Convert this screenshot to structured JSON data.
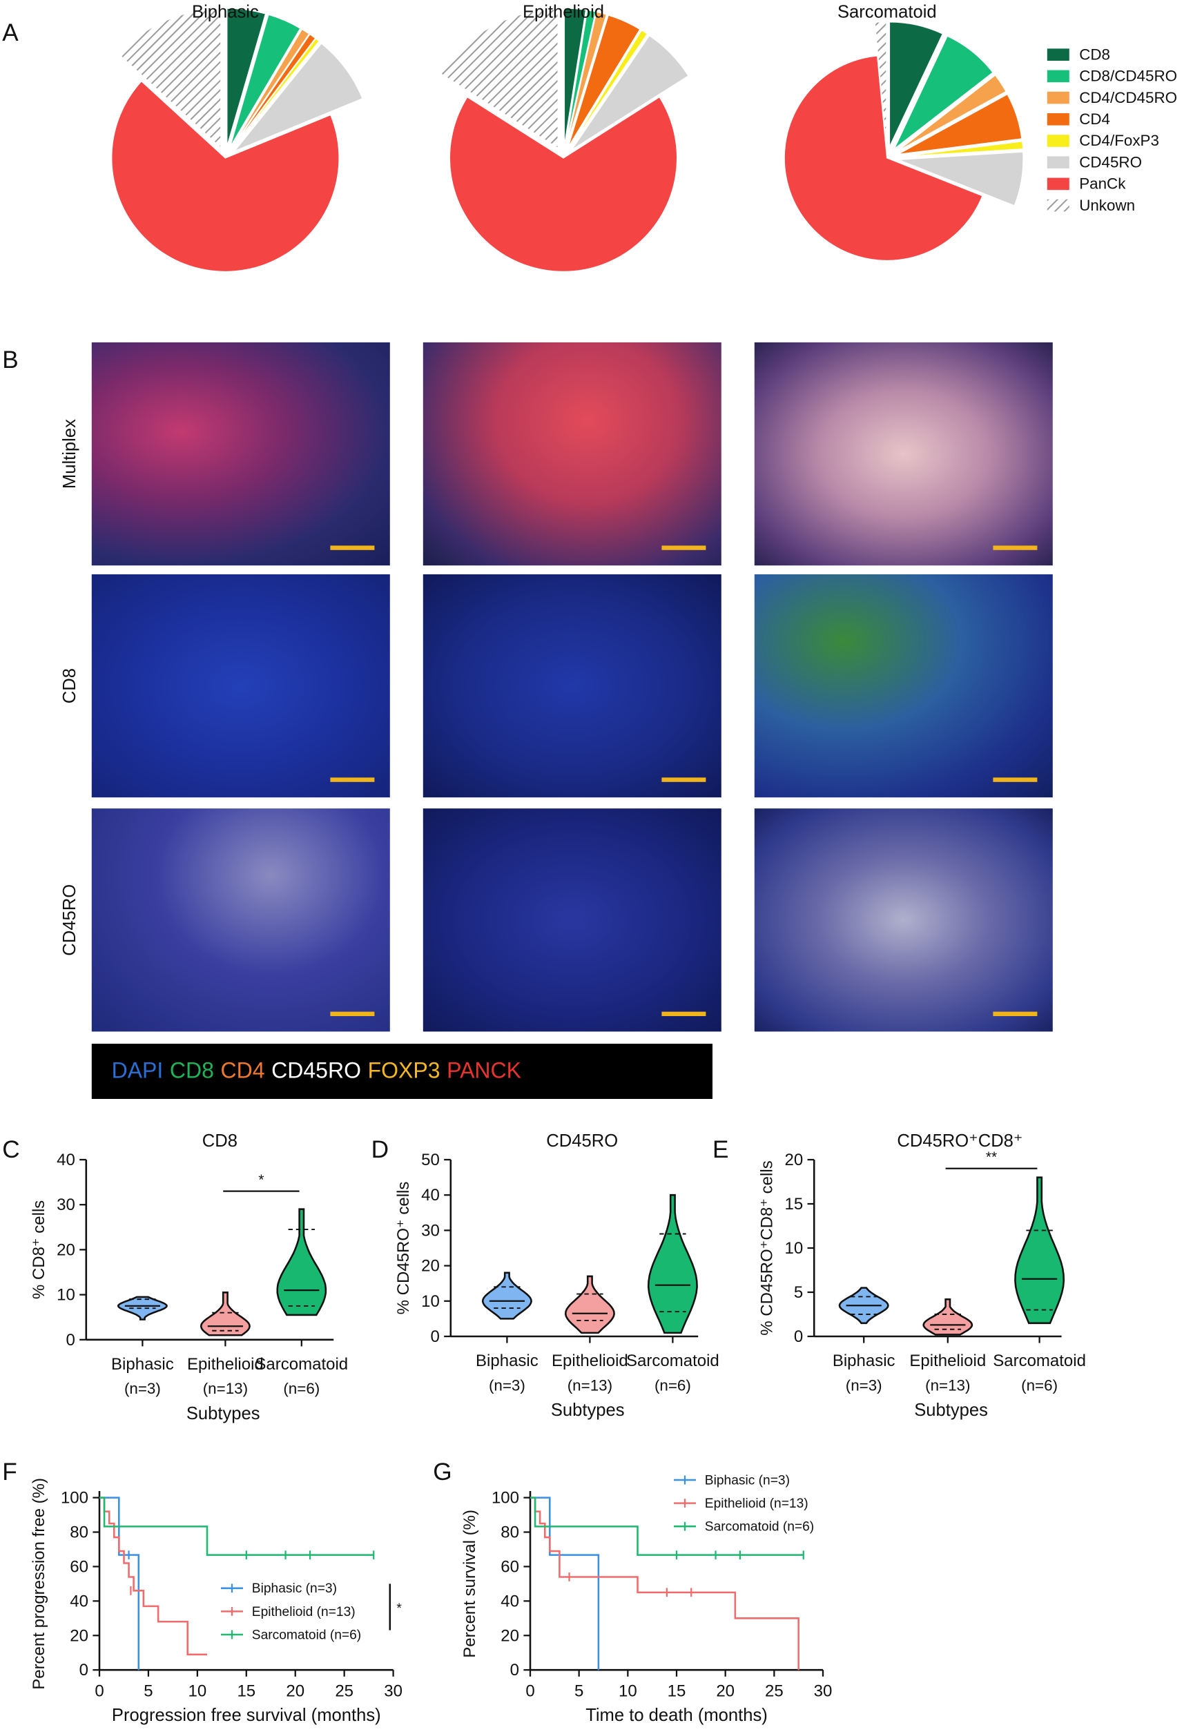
{
  "panel_letters": {
    "A": "A",
    "B": "B",
    "C": "C",
    "D": "D",
    "E": "E",
    "F": "F",
    "G": "G"
  },
  "microscopy": {
    "columns": [
      "Biphasic",
      "Epithelioid",
      "Sarcomatoid"
    ],
    "rows": [
      "Multiplex",
      "CD8",
      "CD45RO"
    ],
    "stain_legend": [
      {
        "label": "DAPI",
        "color": "#2a6fd6"
      },
      {
        "label": "CD8",
        "color": "#1fb35a"
      },
      {
        "label": "CD4",
        "color": "#f07a2a"
      },
      {
        "label": "CD45RO",
        "color": "#ffffff"
      },
      {
        "label": "FOXP3",
        "color": "#f5b820"
      },
      {
        "label": "PANCK",
        "color": "#e8332f"
      }
    ],
    "scale_bar_color": "#f2b41c"
  },
  "chart_data": [
    {
      "id": "A",
      "type": "pie",
      "legend_position": "right",
      "categories": [
        "CD8",
        "CD8/CD45RO",
        "CD4/CD45RO",
        "CD4",
        "CD4/FoxP3",
        "CD45RO",
        "PanCk",
        "Unkown"
      ],
      "colors": [
        "#0c6b45",
        "#17c07a",
        "#f6a24c",
        "#f36b10",
        "#f7ee1c",
        "#d4d4d4",
        "#f44444",
        "#hatch"
      ],
      "pies": [
        {
          "title": "Biphasic",
          "values": [
            4.5,
            4.0,
            1.0,
            0.8,
            0.5,
            8.0,
            68.0,
            13.2
          ]
        },
        {
          "title": "Epithelioid",
          "values": [
            2.5,
            1.0,
            1.2,
            4.0,
            0.8,
            6.5,
            68.0,
            16.0
          ]
        },
        {
          "title": "Sarcomatoid",
          "values": [
            7.0,
            7.5,
            2.5,
            6.0,
            1.0,
            7.0,
            67.5,
            1.5
          ]
        }
      ]
    },
    {
      "id": "C",
      "type": "violin",
      "title": "CD8",
      "ylabel": "% CD8⁺ cells",
      "xlabel": "Subtypes",
      "ylim": [
        0,
        40
      ],
      "yticks": [
        0,
        10,
        20,
        30,
        40
      ],
      "categories": [
        "Biphasic",
        "Epithelioid",
        "Sarcomatoid"
      ],
      "category_n": [
        "(n=3)",
        "(n=13)",
        "(n=6)"
      ],
      "colors": [
        "#7fb6f2",
        "#f4a0a0",
        "#19b870"
      ],
      "min": [
        4.5,
        1.0,
        5.5
      ],
      "max": [
        9.5,
        10.5,
        29.0
      ],
      "median": [
        7.5,
        3.0,
        11.0
      ],
      "q1": [
        7.0,
        2.0,
        7.5
      ],
      "q3": [
        9.0,
        6.0,
        24.5
      ],
      "significance": {
        "label": "*",
        "between": [
          1,
          2
        ],
        "y": 33
      }
    },
    {
      "id": "D",
      "type": "violin",
      "title": "CD45RO",
      "ylabel": "% CD45RO⁺ cells",
      "xlabel": "Subtypes",
      "ylim": [
        0,
        50
      ],
      "yticks": [
        0,
        10,
        20,
        30,
        40,
        50
      ],
      "categories": [
        "Biphasic",
        "Epithelioid",
        "Sarcomatoid"
      ],
      "category_n": [
        "(n=3)",
        "(n=13)",
        "(n=6)"
      ],
      "colors": [
        "#7fb6f2",
        "#f4a0a0",
        "#19b870"
      ],
      "min": [
        5.0,
        1.0,
        1.0
      ],
      "max": [
        18.0,
        17.0,
        40.0
      ],
      "median": [
        10.0,
        6.5,
        14.5
      ],
      "q1": [
        8.0,
        4.5,
        7.0
      ],
      "q3": [
        14.0,
        12.0,
        29.0
      ],
      "significance": null
    },
    {
      "id": "E",
      "type": "violin",
      "title": "CD45RO⁺CD8⁺",
      "ylabel": "% CD45RO⁺CD8⁺ cells",
      "xlabel": "Subtypes",
      "ylim": [
        0,
        20
      ],
      "yticks": [
        0,
        5,
        10,
        15,
        20
      ],
      "categories": [
        "Biphasic",
        "Epithelioid",
        "Sarcomatoid"
      ],
      "category_n": [
        "(n=3)",
        "(n=13)",
        "(n=6)"
      ],
      "colors": [
        "#7fb6f2",
        "#f4a0a0",
        "#19b870"
      ],
      "min": [
        1.5,
        0.2,
        1.5
      ],
      "max": [
        5.5,
        4.2,
        18.0
      ],
      "median": [
        3.5,
        1.3,
        6.5
      ],
      "q1": [
        2.5,
        0.8,
        3.0
      ],
      "q3": [
        4.5,
        2.5,
        12.0
      ],
      "significance": {
        "label": "**",
        "between": [
          1,
          2
        ],
        "y": 19
      }
    },
    {
      "id": "F",
      "type": "line",
      "subtype": "step",
      "xlabel": "Progression free survival (months)",
      "ylabel": "Percent progression free (%)",
      "xlim": [
        0,
        30
      ],
      "ylim": [
        0,
        100
      ],
      "xticks": [
        0,
        5,
        10,
        15,
        20,
        25,
        30
      ],
      "yticks": [
        0,
        20,
        40,
        60,
        80,
        100
      ],
      "legend_position": "bottom-right",
      "significance": "*",
      "series": [
        {
          "name": "Biphasic (n=3)",
          "color": "#3b8fe6",
          "x": [
            0,
            2,
            2,
            4,
            4
          ],
          "y": [
            100,
            100,
            66.7,
            66.7,
            0
          ],
          "censor_x": [
            3.0
          ],
          "censor_y": [
            66.7
          ]
        },
        {
          "name": "Epithelioid (n=13)",
          "color": "#f06b6b",
          "x": [
            0,
            0.5,
            0.5,
            1.0,
            1.0,
            1.5,
            1.5,
            2.0,
            2.0,
            2.5,
            2.5,
            3.0,
            3.0,
            3.5,
            3.5,
            4.5,
            4.5,
            6.0,
            6.0,
            9.0,
            9.0,
            11.0
          ],
          "y": [
            100,
            100,
            92,
            92,
            85,
            85,
            77,
            77,
            69,
            69,
            62,
            62,
            54,
            54,
            46,
            46,
            37,
            37,
            28,
            28,
            9,
            9
          ],
          "censor_x": [
            3.2
          ],
          "censor_y": [
            46
          ]
        },
        {
          "name": "Sarcomatoid (n=6)",
          "color": "#1fb870",
          "x": [
            0,
            0.5,
            0.5,
            11.0,
            11.0,
            28.0
          ],
          "y": [
            100,
            100,
            83.3,
            83.3,
            66.7,
            66.7
          ],
          "censor_x": [
            15.0,
            19.0,
            21.5,
            28.0
          ],
          "censor_y": [
            66.7,
            66.7,
            66.7,
            66.7
          ]
        }
      ]
    },
    {
      "id": "G",
      "type": "line",
      "subtype": "step",
      "xlabel": "Time to death (months)",
      "ylabel": "Percent survival (%)",
      "xlim": [
        0,
        30
      ],
      "ylim": [
        0,
        100
      ],
      "xticks": [
        0,
        5,
        10,
        15,
        20,
        25,
        30
      ],
      "yticks": [
        0,
        20,
        40,
        60,
        80,
        100
      ],
      "legend_position": "top",
      "series": [
        {
          "name": "Biphasic (n=3)",
          "color": "#3b8fe6",
          "x": [
            0,
            2,
            2,
            7,
            7
          ],
          "y": [
            100,
            100,
            66.7,
            66.7,
            0
          ],
          "censor_x": [],
          "censor_y": []
        },
        {
          "name": "Epithelioid (n=13)",
          "color": "#f06b6b",
          "x": [
            0,
            0.5,
            0.5,
            1.0,
            1.0,
            1.5,
            1.5,
            2.0,
            2.0,
            3.0,
            3.0,
            11.0,
            11.0,
            21.0,
            21.0,
            27.5,
            27.5
          ],
          "y": [
            100,
            100,
            92,
            92,
            85,
            85,
            77,
            77,
            69,
            69,
            54,
            54,
            45,
            45,
            30,
            30,
            0
          ],
          "censor_x": [
            4.0,
            14.0,
            16.5
          ],
          "censor_y": [
            54,
            45,
            45
          ]
        },
        {
          "name": "Sarcomatoid (n=6)",
          "color": "#1fb870",
          "x": [
            0,
            0.5,
            0.5,
            11.0,
            11.0,
            28.0
          ],
          "y": [
            100,
            100,
            83.3,
            83.3,
            66.7,
            66.7
          ],
          "censor_x": [
            15.0,
            19.0,
            21.5,
            28.0
          ],
          "censor_y": [
            66.7,
            66.7,
            66.7,
            66.7
          ]
        }
      ]
    }
  ]
}
